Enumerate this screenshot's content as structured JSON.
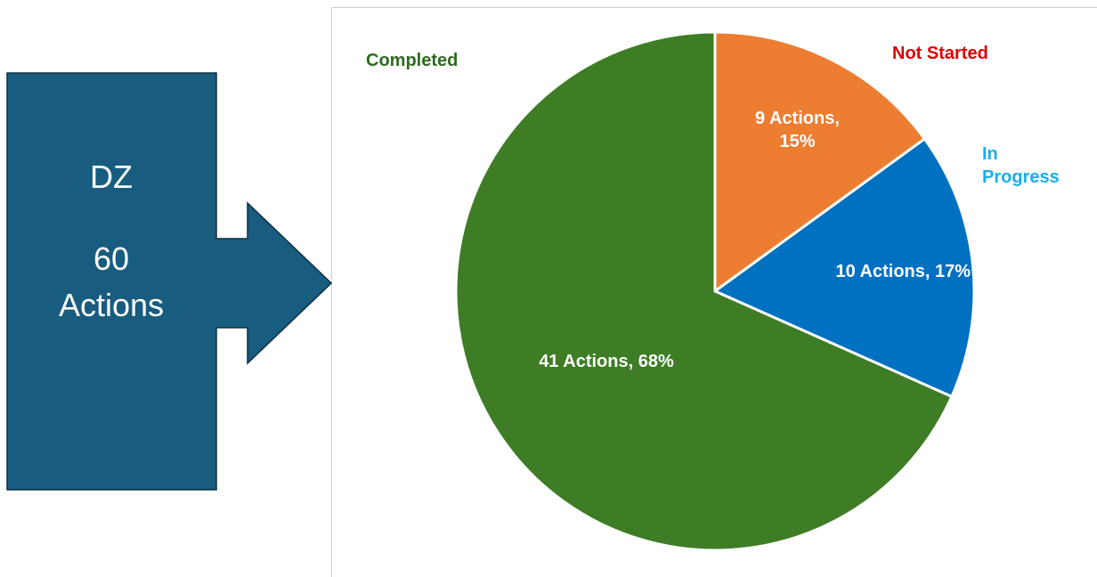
{
  "callout": {
    "title": "DZ",
    "total": "60 Actions"
  },
  "chart_data": {
    "type": "pie",
    "categories": [
      "Not Started",
      "In Progress",
      "Completed"
    ],
    "values": [
      9,
      10,
      41
    ],
    "value_labels": [
      "9 Actions, 15%",
      "10 Actions, 17%",
      "41 Actions, 68%"
    ],
    "colors": [
      "#ED7D31",
      "#0070C0",
      "#3E7D26"
    ],
    "label_colors": [
      "#E00000",
      "#1AADE8",
      "#2E6B1F"
    ]
  }
}
